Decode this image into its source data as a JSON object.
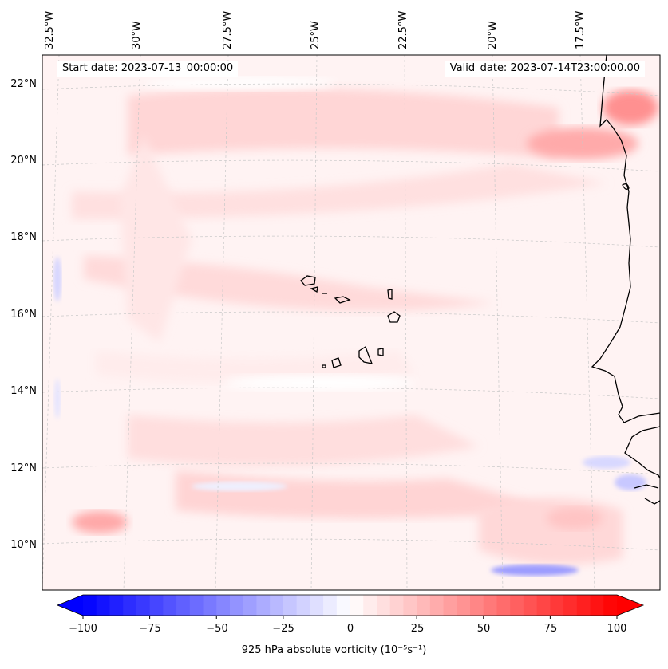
{
  "map": {
    "start_date": "Start date: 2023-07-13_00:00:00",
    "valid_date": "Valid_date: 2023-07-14T23:00:00.00",
    "lon_labels": [
      "32.5°W",
      "30°W",
      "27.5°W",
      "25°W",
      "22.5°W",
      "20°W",
      "17.5°W"
    ],
    "lat_labels": [
      "22°N",
      "20°N",
      "18°N",
      "16°N",
      "14°N",
      "12°N",
      "10°N"
    ],
    "field": "925 hPa absolute vorticity",
    "colors": {
      "positive_max": "#ff0000",
      "negative_max": "#0000ff",
      "neutral": "#ffffff",
      "coastline": "#000000",
      "gridline": "#c8c8c8"
    }
  },
  "colorbar": {
    "min": -100,
    "max": 100,
    "step": 5,
    "ticks": [
      "−100",
      "−75",
      "−50",
      "−25",
      "0",
      "25",
      "50",
      "75",
      "100"
    ],
    "label": "925 hPa absolute vorticity (10⁻⁵s⁻¹)"
  }
}
